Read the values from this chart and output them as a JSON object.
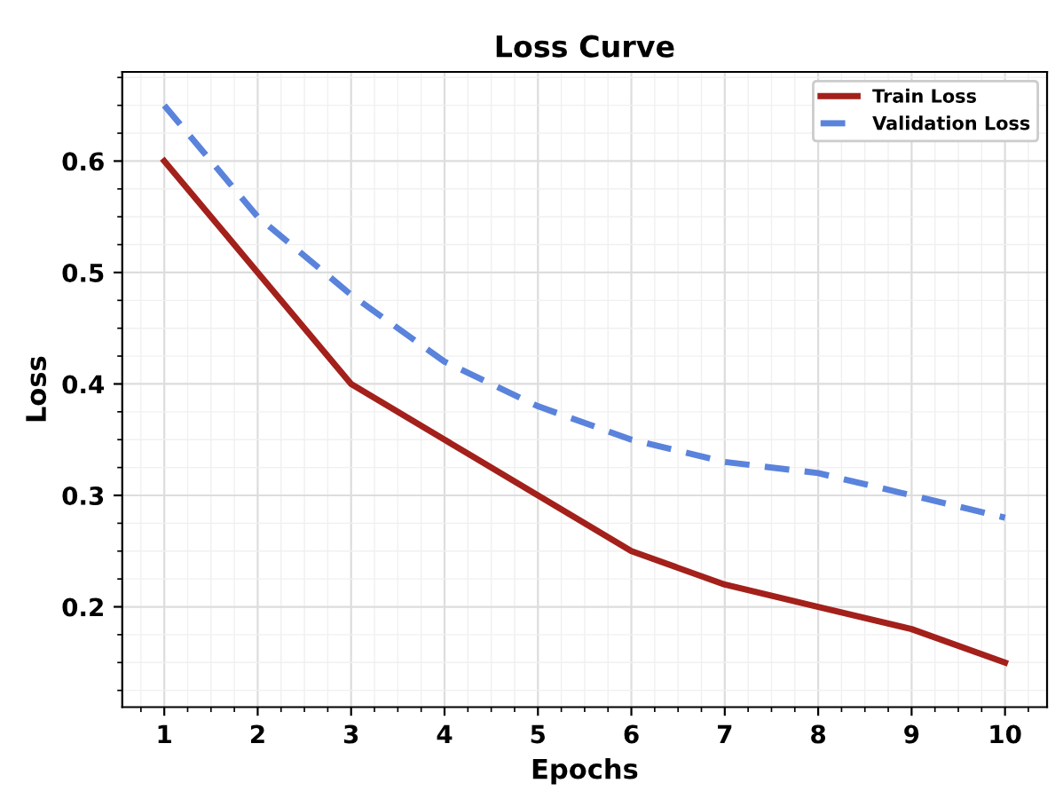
{
  "chart_data": {
    "type": "line",
    "title": "Loss Curve",
    "xlabel": "Epochs",
    "ylabel": "Loss",
    "x": [
      1,
      2,
      3,
      4,
      5,
      6,
      7,
      8,
      9,
      10
    ],
    "series": [
      {
        "name": "Train Loss",
        "color": "#a3201b",
        "line_style": "solid",
        "values": [
          0.6,
          0.5,
          0.4,
          0.35,
          0.3,
          0.25,
          0.22,
          0.2,
          0.18,
          0.15
        ]
      },
      {
        "name": "Validation Loss",
        "color": "#5a83dc",
        "line_style": "dashed",
        "values": [
          0.65,
          0.55,
          0.48,
          0.42,
          0.38,
          0.35,
          0.33,
          0.32,
          0.3,
          0.28
        ]
      }
    ],
    "xlim": [
      0.55,
      10.45
    ],
    "ylim": [
      0.11,
      0.68
    ],
    "xticks": [
      1,
      2,
      3,
      4,
      5,
      6,
      7,
      8,
      9,
      10
    ],
    "yticks": [
      0.2,
      0.3,
      0.4,
      0.5,
      0.6
    ],
    "grid": true,
    "legend": "top right",
    "marker": "none"
  }
}
